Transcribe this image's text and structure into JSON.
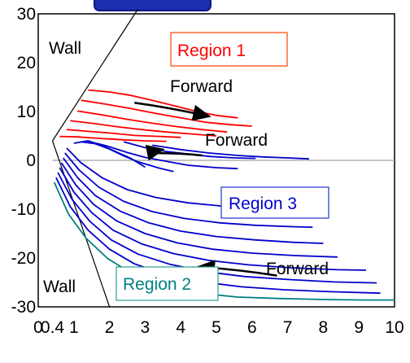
{
  "chart_data": {
    "type": "line",
    "xlim": [
      0,
      10
    ],
    "ylim": [
      -30,
      30
    ],
    "x_ticks": [
      {
        "value": 0,
        "label": "0"
      },
      {
        "value": 0.4,
        "label": "0.4"
      },
      {
        "value": 1,
        "label": "1"
      },
      {
        "value": 2,
        "label": "2"
      },
      {
        "value": 3,
        "label": "3"
      },
      {
        "value": 4,
        "label": "4"
      },
      {
        "value": 5,
        "label": "5"
      },
      {
        "value": 6,
        "label": "6"
      },
      {
        "value": 7,
        "label": "7"
      },
      {
        "value": 8,
        "label": "8"
      },
      {
        "value": 9,
        "label": "9"
      },
      {
        "value": 10,
        "label": "10"
      }
    ],
    "y_ticks": [
      {
        "value": 30,
        "label": "30"
      },
      {
        "value": 20,
        "label": "20"
      },
      {
        "value": 10,
        "label": "10"
      },
      {
        "value": 0,
        "label": "0"
      },
      {
        "value": -10,
        "label": "-10"
      },
      {
        "value": -20,
        "label": "-20"
      },
      {
        "value": -30,
        "label": "-30"
      }
    ],
    "grid": false,
    "colors": {
      "region1": "#ff0000",
      "region2": "#008080",
      "region3": "#0000cc",
      "wall": "#000000",
      "reference": "#a0a0a0",
      "region1_box": "#ff4400",
      "region3_box": "#2233cc",
      "region2_box": "#2a9d8f"
    },
    "walls": [
      {
        "label": "Wall",
        "from": [
          0.4,
          4
        ],
        "to": [
          2.8,
          31
        ]
      },
      {
        "label": "Wall",
        "from": [
          0.4,
          4
        ],
        "to": [
          2.0,
          -30
        ]
      }
    ],
    "reference_line": {
      "y": 0,
      "x_from": 0.4,
      "x_to": 10
    },
    "regions": [
      {
        "label": "Region 1",
        "color": "#ff0000"
      },
      {
        "label": "Region 3",
        "color": "#0000cc"
      },
      {
        "label": "Region 2",
        "color": "#008080"
      }
    ],
    "annotations": [
      {
        "text": "Forward",
        "arrow_from": [
          2.7,
          11.8
        ],
        "arrow_to": [
          4.8,
          9.0
        ]
      },
      {
        "text": "Forward",
        "arrow_from": [
          4.6,
          1.0
        ],
        "arrow_to": [
          3.5,
          2.2
        ]
      },
      {
        "text": "Forward",
        "arrow_from": [
          6.7,
          -23.6
        ],
        "arrow_to": [
          4.5,
          -21.8
        ]
      }
    ],
    "series": [
      {
        "region": "Region 1",
        "curves": [
          [
            [
              1.4,
              14.4
            ],
            [
              2.0,
              14.0
            ],
            [
              2.6,
              13.3
            ],
            [
              3.2,
              12.3
            ],
            [
              3.8,
              11.2
            ],
            [
              4.4,
              10.1
            ],
            [
              5.0,
              9.2
            ],
            [
              5.6,
              8.7
            ]
          ],
          [
            [
              1.2,
              12.3
            ],
            [
              1.9,
              11.5
            ],
            [
              2.6,
              10.6
            ],
            [
              3.3,
              9.6
            ],
            [
              4.0,
              8.7
            ],
            [
              4.7,
              7.8
            ],
            [
              5.4,
              7.3
            ],
            [
              6.0,
              7.0
            ]
          ],
          [
            [
              1.1,
              10.1
            ],
            [
              1.8,
              9.3
            ],
            [
              2.5,
              8.4
            ],
            [
              3.2,
              7.6
            ],
            [
              3.9,
              6.9
            ],
            [
              4.6,
              6.3
            ],
            [
              5.3,
              5.8
            ]
          ],
          [
            [
              0.9,
              8.1
            ],
            [
              1.5,
              7.6
            ],
            [
              2.2,
              6.9
            ],
            [
              2.9,
              6.3
            ],
            [
              3.6,
              5.8
            ],
            [
              4.3,
              5.4
            ],
            [
              5.0,
              5.0
            ]
          ],
          [
            [
              0.8,
              6.3
            ],
            [
              1.3,
              6.0
            ],
            [
              2.0,
              5.6
            ],
            [
              2.7,
              5.1
            ],
            [
              3.4,
              4.9
            ],
            [
              4.0,
              4.7
            ]
          ],
          [
            [
              0.6,
              4.9
            ],
            [
              1.1,
              4.8
            ],
            [
              1.7,
              4.5
            ],
            [
              2.4,
              4.2
            ],
            [
              3.0,
              4.0
            ],
            [
              3.6,
              3.9
            ]
          ]
        ]
      },
      {
        "region": "Region 3",
        "curves": [
          [
            [
              1.0,
              3.5
            ],
            [
              1.4,
              4.0
            ],
            [
              1.8,
              3.0
            ],
            [
              2.2,
              1.7
            ],
            [
              2.6,
              0.4
            ],
            [
              3.0,
              -1.4
            ]
          ],
          [
            [
              1.2,
              3.8
            ],
            [
              1.6,
              3.4
            ],
            [
              2.0,
              2.3
            ],
            [
              2.4,
              0.9
            ],
            [
              2.8,
              -0.3
            ],
            [
              3.4,
              -1.6
            ],
            [
              3.8,
              -2.3
            ]
          ],
          [
            [
              1.4,
              3.9
            ],
            [
              1.9,
              3.0
            ],
            [
              2.5,
              1.6
            ],
            [
              3.0,
              0.6
            ],
            [
              3.6,
              -0.2
            ],
            [
              4.2,
              -1.0
            ],
            [
              5.0,
              -1.5
            ],
            [
              5.6,
              -1.7
            ]
          ],
          [
            [
              2.4,
              3.8
            ],
            [
              3.0,
              2.6
            ],
            [
              3.6,
              1.8
            ],
            [
              4.2,
              1.3
            ],
            [
              4.8,
              0.8
            ],
            [
              5.5,
              0.5
            ],
            [
              6.1,
              0.4
            ]
          ],
          [
            [
              3.2,
              3.1
            ],
            [
              4.0,
              2.2
            ],
            [
              4.8,
              1.5
            ],
            [
              5.6,
              1.0
            ],
            [
              6.3,
              0.7
            ],
            [
              7.0,
              0.5
            ],
            [
              7.6,
              0.3
            ]
          ],
          [
            [
              0.8,
              2.5
            ],
            [
              1.2,
              -0.5
            ],
            [
              1.8,
              -3.6
            ],
            [
              2.5,
              -6.0
            ],
            [
              3.3,
              -7.6
            ],
            [
              4.2,
              -8.7
            ],
            [
              5.2,
              -9.4
            ],
            [
              6.2,
              -9.8
            ],
            [
              7.0,
              -9.9
            ]
          ],
          [
            [
              0.75,
              1.5
            ],
            [
              1.15,
              -2.0
            ],
            [
              1.7,
              -5.5
            ],
            [
              2.4,
              -8.4
            ],
            [
              3.2,
              -10.5
            ],
            [
              4.1,
              -11.9
            ],
            [
              5.1,
              -12.8
            ],
            [
              6.1,
              -13.3
            ],
            [
              7.2,
              -13.6
            ],
            [
              7.7,
              -13.7
            ]
          ],
          [
            [
              0.7,
              0.5
            ],
            [
              1.1,
              -3.5
            ],
            [
              1.6,
              -7.2
            ],
            [
              2.3,
              -10.4
            ],
            [
              3.1,
              -12.8
            ],
            [
              4.0,
              -14.5
            ],
            [
              5.0,
              -15.6
            ],
            [
              6.1,
              -16.3
            ],
            [
              7.2,
              -16.8
            ],
            [
              8.0,
              -17.0
            ]
          ],
          [
            [
              0.65,
              -0.5
            ],
            [
              1.05,
              -5.0
            ],
            [
              1.55,
              -9.0
            ],
            [
              2.2,
              -12.4
            ],
            [
              3.0,
              -15.0
            ],
            [
              3.9,
              -16.9
            ],
            [
              4.9,
              -18.2
            ],
            [
              6.0,
              -19.0
            ],
            [
              7.2,
              -19.5
            ],
            [
              8.4,
              -19.8
            ]
          ],
          [
            [
              0.6,
              -1.5
            ],
            [
              1.0,
              -6.5
            ],
            [
              1.5,
              -10.7
            ],
            [
              2.1,
              -14.3
            ],
            [
              2.9,
              -17.1
            ],
            [
              3.8,
              -19.1
            ],
            [
              4.8,
              -20.5
            ],
            [
              5.9,
              -21.4
            ],
            [
              7.1,
              -22.0
            ],
            [
              8.4,
              -22.4
            ],
            [
              9.2,
              -22.5
            ]
          ],
          [
            [
              0.55,
              -2.5
            ],
            [
              0.95,
              -8.0
            ],
            [
              1.45,
              -12.5
            ],
            [
              2.05,
              -16.3
            ],
            [
              2.8,
              -19.2
            ],
            [
              3.7,
              -21.3
            ],
            [
              4.7,
              -22.8
            ],
            [
              5.8,
              -23.8
            ],
            [
              7.0,
              -24.4
            ],
            [
              8.3,
              -24.9
            ],
            [
              9.5,
              -25.1
            ]
          ],
          [
            [
              0.5,
              -3.5
            ],
            [
              0.9,
              -9.5
            ],
            [
              1.4,
              -14.3
            ],
            [
              2.0,
              -18.2
            ],
            [
              2.7,
              -21.2
            ],
            [
              3.6,
              -23.4
            ],
            [
              4.6,
              -24.9
            ],
            [
              5.7,
              -25.9
            ],
            [
              6.9,
              -26.5
            ],
            [
              8.2,
              -26.9
            ],
            [
              9.6,
              -27.2
            ]
          ]
        ]
      },
      {
        "region": "Region 2",
        "curves": [
          [
            [
              0.45,
              -4.5
            ],
            [
              0.85,
              -11.0
            ],
            [
              1.35,
              -16.0
            ],
            [
              1.95,
              -20.1
            ],
            [
              2.65,
              -23.3
            ],
            [
              3.5,
              -25.6
            ],
            [
              4.5,
              -27.2
            ],
            [
              5.6,
              -28.0
            ],
            [
              6.8,
              -28.3
            ],
            [
              8.0,
              -28.5
            ],
            [
              9.2,
              -28.6
            ],
            [
              10.0,
              -28.6
            ]
          ]
        ]
      }
    ]
  }
}
